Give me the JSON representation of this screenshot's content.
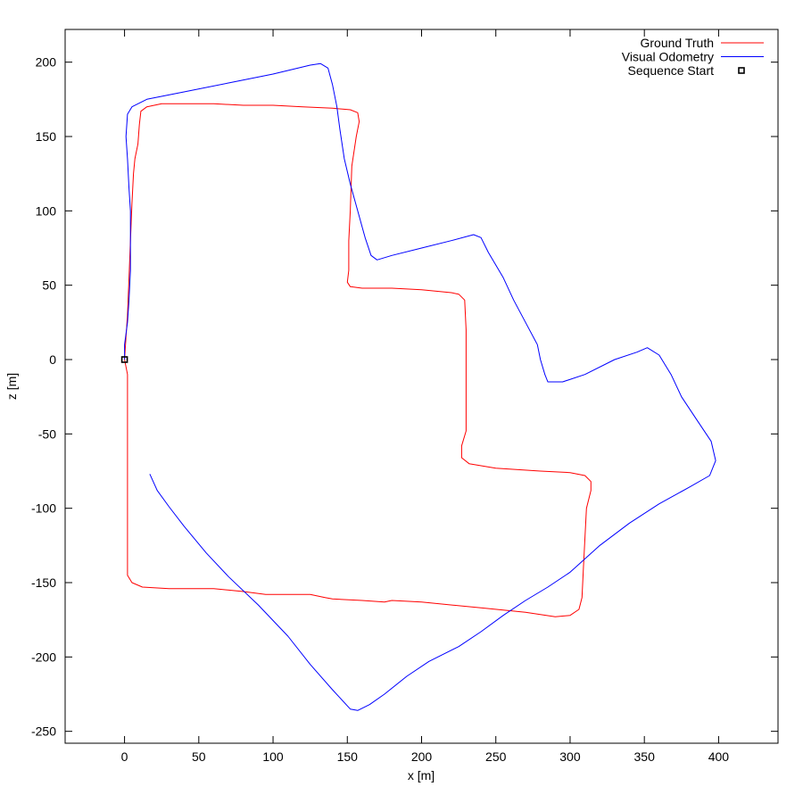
{
  "chart_data": {
    "type": "line",
    "title": "",
    "xlabel": "x [m]",
    "ylabel": "z [m]",
    "xlim": [
      -40,
      440
    ],
    "ylim": [
      -258,
      222
    ],
    "xticks": [
      0,
      50,
      100,
      150,
      200,
      250,
      300,
      350,
      400
    ],
    "yticks": [
      200,
      150,
      100,
      50,
      0,
      -50,
      -100,
      -150,
      -200,
      -250
    ],
    "grid": false,
    "legend_position": "top-right",
    "series": [
      {
        "name": "Ground Truth",
        "color": "#ff0000",
        "points": [
          [
            0,
            0
          ],
          [
            2,
            -10
          ],
          [
            2,
            -30
          ],
          [
            2,
            -60
          ],
          [
            2,
            -100
          ],
          [
            2,
            -130
          ],
          [
            2,
            -145
          ],
          [
            5,
            -150
          ],
          [
            12,
            -153
          ],
          [
            30,
            -154
          ],
          [
            60,
            -154
          ],
          [
            80,
            -156
          ],
          [
            95,
            -158
          ],
          [
            110,
            -158
          ],
          [
            125,
            -158
          ],
          [
            135,
            -160
          ],
          [
            140,
            -161
          ],
          [
            160,
            -162
          ],
          [
            175,
            -163
          ],
          [
            180,
            -162
          ],
          [
            200,
            -163
          ],
          [
            240,
            -167
          ],
          [
            270,
            -170
          ],
          [
            290,
            -173
          ],
          [
            300,
            -172
          ],
          [
            306,
            -168
          ],
          [
            308,
            -160
          ],
          [
            309,
            -140
          ],
          [
            310,
            -120
          ],
          [
            311,
            -100
          ],
          [
            314,
            -88
          ],
          [
            314,
            -82
          ],
          [
            310,
            -78
          ],
          [
            300,
            -76
          ],
          [
            280,
            -75
          ],
          [
            250,
            -73
          ],
          [
            232,
            -70
          ],
          [
            227,
            -66
          ],
          [
            227,
            -58
          ],
          [
            230,
            -48
          ],
          [
            230,
            -25
          ],
          [
            230,
            0
          ],
          [
            230,
            20
          ],
          [
            229,
            40
          ],
          [
            225,
            44
          ],
          [
            220,
            45
          ],
          [
            200,
            47
          ],
          [
            180,
            48
          ],
          [
            160,
            48
          ],
          [
            152,
            49
          ],
          [
            150,
            52
          ],
          [
            151,
            60
          ],
          [
            151,
            80
          ],
          [
            152,
            100
          ],
          [
            153,
            130
          ],
          [
            156,
            150
          ],
          [
            158,
            160
          ],
          [
            157,
            166
          ],
          [
            152,
            168
          ],
          [
            140,
            169
          ],
          [
            120,
            170
          ],
          [
            100,
            171
          ],
          [
            80,
            171
          ],
          [
            60,
            172
          ],
          [
            40,
            172
          ],
          [
            25,
            172
          ],
          [
            15,
            170
          ],
          [
            11,
            167
          ],
          [
            10,
            158
          ],
          [
            9,
            145
          ],
          [
            7,
            135
          ],
          [
            6,
            125
          ],
          [
            5,
            105
          ],
          [
            4,
            80
          ],
          [
            3,
            55
          ],
          [
            2,
            30
          ],
          [
            1,
            15
          ],
          [
            0,
            0
          ]
        ]
      },
      {
        "name": "Visual Odometry",
        "color": "#0000ff",
        "points": [
          [
            0,
            0
          ],
          [
            0,
            10
          ],
          [
            2,
            25
          ],
          [
            3,
            40
          ],
          [
            4,
            60
          ],
          [
            4,
            80
          ],
          [
            4,
            100
          ],
          [
            3,
            115
          ],
          [
            2,
            135
          ],
          [
            1,
            150
          ],
          [
            2,
            165
          ],
          [
            5,
            170
          ],
          [
            15,
            175
          ],
          [
            40,
            180
          ],
          [
            70,
            186
          ],
          [
            100,
            192
          ],
          [
            125,
            198
          ],
          [
            132,
            199
          ],
          [
            137,
            196
          ],
          [
            140,
            185
          ],
          [
            143,
            170
          ],
          [
            145,
            155
          ],
          [
            148,
            135
          ],
          [
            152,
            118
          ],
          [
            157,
            100
          ],
          [
            162,
            82
          ],
          [
            166,
            70
          ],
          [
            170,
            67
          ],
          [
            180,
            70
          ],
          [
            200,
            75
          ],
          [
            220,
            80
          ],
          [
            235,
            84
          ],
          [
            240,
            82
          ],
          [
            245,
            72
          ],
          [
            255,
            55
          ],
          [
            262,
            40
          ],
          [
            270,
            25
          ],
          [
            278,
            10
          ],
          [
            280,
            0
          ],
          [
            283,
            -10
          ],
          [
            285,
            -15
          ],
          [
            295,
            -15
          ],
          [
            310,
            -10
          ],
          [
            330,
            0
          ],
          [
            345,
            5
          ],
          [
            352,
            8
          ],
          [
            360,
            3
          ],
          [
            368,
            -10
          ],
          [
            375,
            -25
          ],
          [
            385,
            -40
          ],
          [
            395,
            -55
          ],
          [
            398,
            -68
          ],
          [
            394,
            -78
          ],
          [
            380,
            -86
          ],
          [
            360,
            -97
          ],
          [
            340,
            -110
          ],
          [
            320,
            -125
          ],
          [
            300,
            -143
          ],
          [
            285,
            -153
          ],
          [
            270,
            -162
          ],
          [
            255,
            -172
          ],
          [
            240,
            -183
          ],
          [
            225,
            -193
          ],
          [
            205,
            -203
          ],
          [
            190,
            -213
          ],
          [
            175,
            -225
          ],
          [
            165,
            -232
          ],
          [
            157,
            -236
          ],
          [
            152,
            -235
          ],
          [
            140,
            -222
          ],
          [
            125,
            -205
          ],
          [
            110,
            -186
          ],
          [
            90,
            -165
          ],
          [
            70,
            -146
          ],
          [
            55,
            -130
          ],
          [
            40,
            -112
          ],
          [
            30,
            -99
          ],
          [
            22,
            -88
          ],
          [
            17,
            -77
          ]
        ]
      },
      {
        "name": "Sequence Start",
        "type": "marker",
        "color": "#000000",
        "points": [
          [
            0,
            0
          ]
        ]
      }
    ]
  }
}
